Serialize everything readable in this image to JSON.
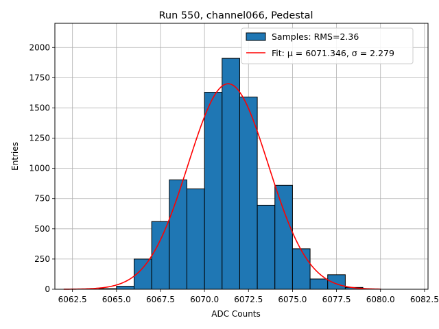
{
  "chart_data": {
    "type": "bar",
    "title": "Run 550, channel066, Pedestal",
    "xlabel": "ADC Counts",
    "ylabel": "Entries",
    "xlim": [
      6061.5,
      6082.7
    ],
    "ylim": [
      0,
      2200
    ],
    "xticks": [
      6062.5,
      6065.0,
      6067.5,
      6070.0,
      6072.5,
      6075.0,
      6077.5,
      6080.0,
      6082.5
    ],
    "xtick_labels": [
      "6062.5",
      "6065.0",
      "6067.5",
      "6070.0",
      "6072.5",
      "6075.0",
      "6077.5",
      "6080.0",
      "6082.5"
    ],
    "yticks": [
      0,
      250,
      500,
      750,
      1000,
      1250,
      1500,
      1750,
      2000
    ],
    "ytick_labels": [
      "0",
      "250",
      "500",
      "750",
      "1000",
      "1250",
      "1500",
      "1750",
      "2000"
    ],
    "grid": true,
    "legend_position": "top-right",
    "bins": [
      {
        "left": 6062.0,
        "right": 6063.0,
        "count": 0
      },
      {
        "left": 6063.0,
        "right": 6064.0,
        "count": 0
      },
      {
        "left": 6064.0,
        "right": 6065.0,
        "count": 5
      },
      {
        "left": 6065.0,
        "right": 6066.0,
        "count": 25
      },
      {
        "left": 6066.0,
        "right": 6067.0,
        "count": 250
      },
      {
        "left": 6067.0,
        "right": 6068.0,
        "count": 560
      },
      {
        "left": 6068.0,
        "right": 6069.0,
        "count": 905
      },
      {
        "left": 6069.0,
        "right": 6070.0,
        "count": 830
      },
      {
        "left": 6070.0,
        "right": 6071.0,
        "count": 1630
      },
      {
        "left": 6071.0,
        "right": 6072.0,
        "count": 1910
      },
      {
        "left": 6072.0,
        "right": 6073.0,
        "count": 1590
      },
      {
        "left": 6073.0,
        "right": 6074.0,
        "count": 695
      },
      {
        "left": 6074.0,
        "right": 6075.0,
        "count": 860
      },
      {
        "left": 6075.0,
        "right": 6076.0,
        "count": 335
      },
      {
        "left": 6076.0,
        "right": 6077.0,
        "count": 85
      },
      {
        "left": 6077.0,
        "right": 6078.0,
        "count": 120
      },
      {
        "left": 6078.0,
        "right": 6079.0,
        "count": 15
      },
      {
        "left": 6079.0,
        "right": 6080.0,
        "count": 2
      },
      {
        "left": 6080.0,
        "right": 6081.0,
        "count": 0
      },
      {
        "left": 6081.0,
        "right": 6082.0,
        "count": 0
      }
    ],
    "fit": {
      "mu": 6071.346,
      "sigma": 2.279,
      "amplitude": 1700,
      "x_range": [
        6062.0,
        6080.0
      ]
    },
    "series": [
      {
        "name": "Samples: RMS=2.36",
        "kind": "histogram",
        "color": "#1f77b4"
      },
      {
        "name": "Fit: μ = 6071.346, σ = 2.279",
        "kind": "line",
        "color": "#ff0000"
      }
    ]
  }
}
